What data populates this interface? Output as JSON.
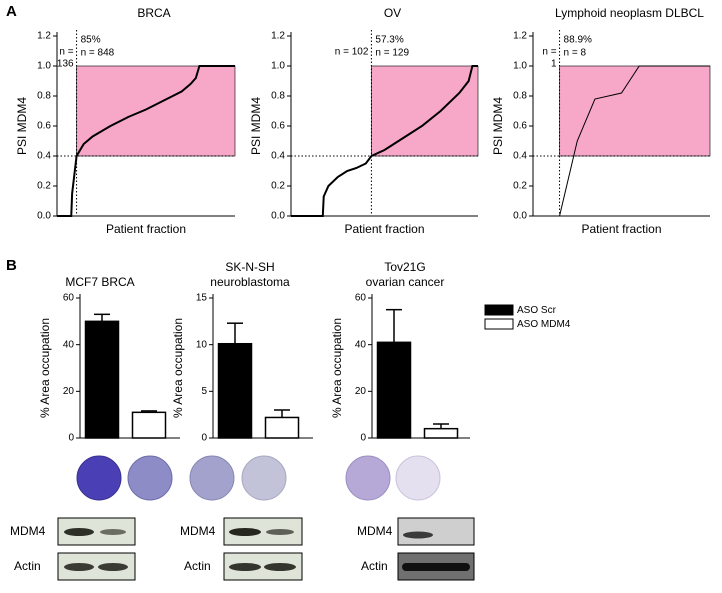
{
  "panel_labels": [
    "A",
    "B"
  ],
  "chart_data": [
    {
      "type": "line",
      "title": "BRCA",
      "x_label": "Patient fraction",
      "y_label": "PSI MDM4",
      "x": [
        0,
        0.05,
        0.08,
        0.085,
        0.1,
        0.11,
        0.13,
        0.15,
        0.2,
        0.3,
        0.4,
        0.5,
        0.6,
        0.7,
        0.75,
        0.78,
        0.8,
        0.9,
        1.0
      ],
      "values": [
        0,
        0,
        0,
        0.15,
        0.3,
        0.4,
        0.44,
        0.48,
        0.53,
        0.6,
        0.66,
        0.71,
        0.77,
        0.83,
        0.88,
        0.92,
        1.0,
        1.0,
        1.0
      ],
      "color": "#000000",
      "highlight_color": "#f7a8c8",
      "split_x": 0.11,
      "highlight_y": [
        0.4,
        1.0
      ],
      "left_note": [
        "n =",
        "136"
      ],
      "right_note": [
        "85%",
        "n = 848"
      ],
      "xlim": [
        0,
        1
      ],
      "ylim": [
        0,
        1.2
      ],
      "yticks": [
        {
          "value": 0,
          "label": "0.0"
        },
        {
          "value": 0.2,
          "label": "0.2"
        },
        {
          "value": 0.4,
          "label": "0.4"
        },
        {
          "value": 0.6,
          "label": "0.6"
        },
        {
          "value": 0.8,
          "label": "0.8"
        },
        {
          "value": 1.0,
          "label": "1.0"
        },
        {
          "value": 1.2,
          "label": "1.2"
        }
      ]
    },
    {
      "type": "line",
      "title": "OV",
      "x_label": "Patient fraction",
      "y_label": "PSI MDM4",
      "x": [
        0,
        0.17,
        0.175,
        0.2,
        0.25,
        0.3,
        0.35,
        0.4,
        0.43,
        0.5,
        0.6,
        0.7,
        0.8,
        0.9,
        0.95,
        0.97,
        1.0
      ],
      "values": [
        0,
        0,
        0.13,
        0.2,
        0.26,
        0.3,
        0.32,
        0.35,
        0.4,
        0.44,
        0.52,
        0.6,
        0.7,
        0.82,
        0.9,
        1.0,
        1.0
      ],
      "color": "#000000",
      "highlight_color": "#f7a8c8",
      "split_x": 0.43,
      "highlight_y": [
        0.4,
        1.0
      ],
      "left_note": [
        "n = 102"
      ],
      "right_note": [
        "57.3%",
        "n = 129"
      ],
      "xlim": [
        0,
        1
      ],
      "ylim": [
        0,
        1.2
      ],
      "yticks": [
        {
          "value": 0,
          "label": "0.0"
        },
        {
          "value": 0.2,
          "label": "0.2"
        },
        {
          "value": 0.4,
          "label": "0.4"
        },
        {
          "value": 0.6,
          "label": "0.6"
        },
        {
          "value": 0.8,
          "label": "0.8"
        },
        {
          "value": 1.0,
          "label": "1.0"
        },
        {
          "value": 1.2,
          "label": "1.2"
        }
      ]
    },
    {
      "type": "line",
      "title": "Lymphoid neoplasm DLBCL",
      "x_label": "Patient fraction",
      "y_label": "PSI MDM4",
      "x": [
        0.15,
        0.25,
        0.35,
        0.5,
        0.6,
        0.7,
        0.8,
        0.9,
        1.0
      ],
      "values": [
        0,
        0.5,
        0.78,
        0.82,
        1.0,
        1.0,
        1.0,
        1.0,
        1.0
      ],
      "color": "#000000",
      "highlight_color": "#f7a8c8",
      "split_x": 0.15,
      "highlight_y": [
        0.4,
        1.0
      ],
      "left_note": [
        "n =",
        "1"
      ],
      "right_note": [
        "88.9%",
        "n = 8"
      ],
      "xlim": [
        0,
        1
      ],
      "ylim": [
        0,
        1.2
      ],
      "yticks": [
        {
          "value": 0,
          "label": "0.0"
        },
        {
          "value": 0.2,
          "label": "0.2"
        },
        {
          "value": 0.4,
          "label": "0.4"
        },
        {
          "value": 0.6,
          "label": "0.6"
        },
        {
          "value": 0.8,
          "label": "0.8"
        },
        {
          "value": 1.0,
          "label": "1.0"
        },
        {
          "value": 1.2,
          "label": "1.2"
        }
      ]
    },
    {
      "type": "bar",
      "title": [
        "MCF7 BRCA"
      ],
      "y_label": "% Area occupation",
      "series": [
        {
          "color": "#000000",
          "values": [
            50
          ],
          "errors": [
            3
          ]
        },
        {
          "color": "#ffffff",
          "values": [
            11
          ],
          "errors": [
            0.6
          ]
        }
      ],
      "ylim": [
        0,
        60
      ],
      "yticks": [
        0,
        20,
        40,
        60
      ],
      "blot_labels": [
        "MDM4",
        "Actin"
      ]
    },
    {
      "type": "bar",
      "title": [
        "SK-N-SH",
        "neuroblastoma"
      ],
      "y_label": "% Area occupation",
      "series": [
        {
          "color": "#000000",
          "values": [
            10.1
          ],
          "errors": [
            2.2
          ]
        },
        {
          "color": "#ffffff",
          "values": [
            2.2
          ],
          "errors": [
            0.8
          ]
        }
      ],
      "ylim": [
        0,
        15
      ],
      "yticks": [
        0,
        5,
        10,
        15
      ],
      "blot_labels": [
        "MDM4",
        "Actin"
      ]
    },
    {
      "type": "bar",
      "title": [
        "Tov21G",
        "ovarian cancer"
      ],
      "y_label": "% Area occupation",
      "series": [
        {
          "name": "ASO Scr",
          "color": "#000000",
          "values": [
            41
          ],
          "errors": [
            14
          ]
        },
        {
          "name": "ASO MDM4",
          "color": "#ffffff",
          "values": [
            4
          ],
          "errors": [
            2
          ]
        }
      ],
      "ylim": [
        0,
        60
      ],
      "yticks": [
        0,
        20,
        40,
        60
      ],
      "legend": "right",
      "blot_labels": [
        "MDM4",
        "Actin"
      ]
    }
  ]
}
